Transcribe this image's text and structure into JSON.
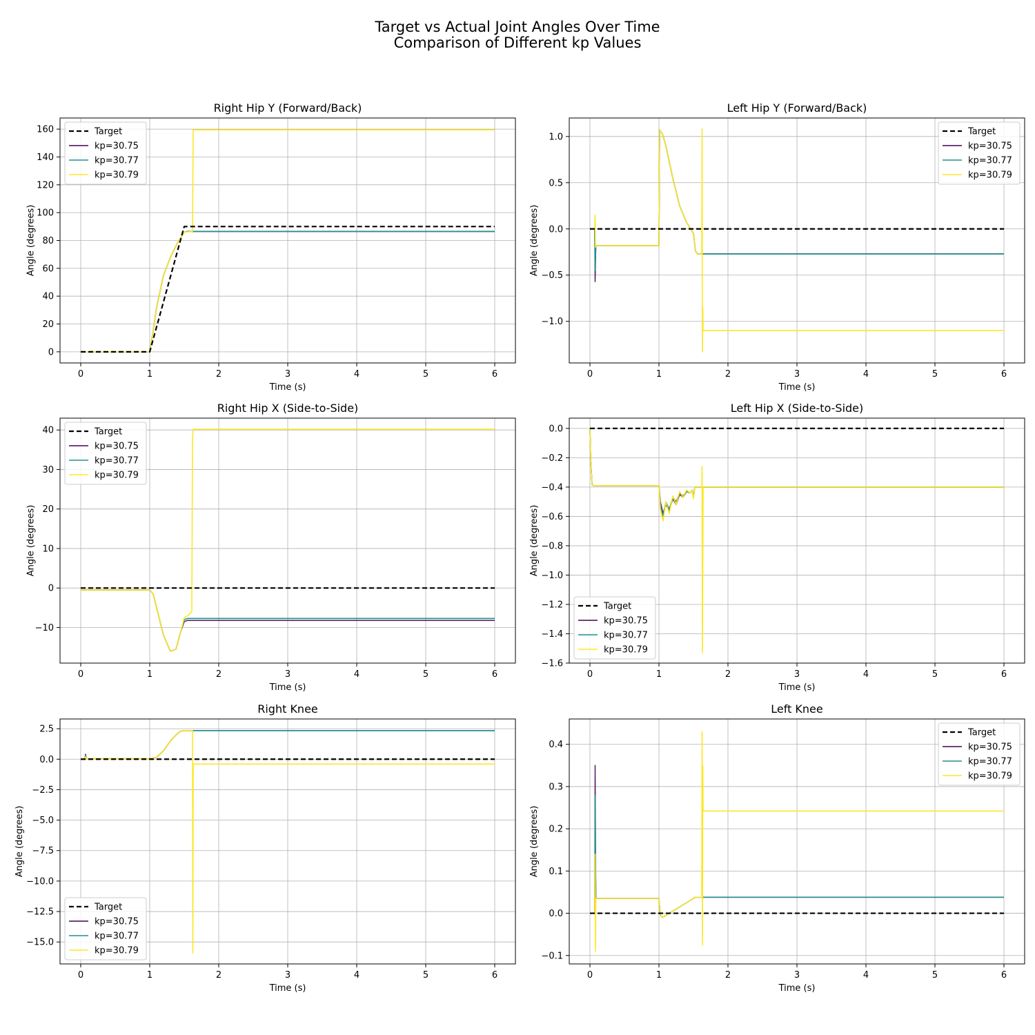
{
  "figure": {
    "title_line1": "Target vs Actual Joint Angles Over Time",
    "title_line2": "Comparison of Different kp Values"
  },
  "colors": {
    "target": "#000000",
    "kp30.75": "#440154",
    "kp30.77": "#21918c",
    "kp30.79": "#fde725",
    "grid": "#b0b0b0"
  },
  "legend_labels": [
    "Target",
    "kp=30.75",
    "kp=30.77",
    "kp=30.79"
  ],
  "chart_data": [
    {
      "type": "line",
      "title": "Right Hip Y (Forward/Back)",
      "xlabel": "Time (s)",
      "ylabel": "Angle (degrees)",
      "xlim": [
        -0.3,
        6.3
      ],
      "ylim": [
        -8,
        168
      ],
      "xticks": [
        0,
        1,
        2,
        3,
        4,
        5,
        6
      ],
      "yticks": [
        0,
        20,
        40,
        60,
        80,
        100,
        120,
        140,
        160
      ],
      "ytick_labels": [
        "0",
        "20",
        "40",
        "60",
        "80",
        "100",
        "120",
        "140",
        "160"
      ],
      "grid": true,
      "legend": "upper-left",
      "series": [
        {
          "name": "Target",
          "style": "dashed",
          "x": [
            0,
            1.0,
            1.5,
            6
          ],
          "y": [
            0,
            0,
            90,
            90
          ]
        },
        {
          "name": "kp=30.75",
          "x": [
            0,
            1.0,
            1.05,
            1.1,
            1.2,
            1.3,
            1.4,
            1.5,
            1.55,
            6
          ],
          "y": [
            0,
            0,
            15,
            32,
            55,
            68,
            78,
            86,
            86.5,
            86.5
          ]
        },
        {
          "name": "kp=30.77",
          "x": [
            0,
            1.0,
            1.05,
            1.1,
            1.2,
            1.3,
            1.4,
            1.5,
            1.55,
            6
          ],
          "y": [
            0,
            0,
            15,
            32,
            55,
            68,
            78,
            86,
            86.5,
            86.5
          ]
        },
        {
          "name": "kp=30.79",
          "x": [
            0,
            1.0,
            1.05,
            1.1,
            1.2,
            1.3,
            1.4,
            1.5,
            1.62,
            1.63,
            6
          ],
          "y": [
            0,
            0,
            15,
            32,
            55,
            68,
            78,
            86,
            86.5,
            159.5,
            159.5
          ]
        }
      ]
    },
    {
      "type": "line",
      "title": "Left Hip Y (Forward/Back)",
      "xlabel": "Time (s)",
      "ylabel": "Angle (degrees)",
      "xlim": [
        -0.3,
        6.3
      ],
      "ylim": [
        -1.45,
        1.2
      ],
      "xticks": [
        0,
        1,
        2,
        3,
        4,
        5,
        6
      ],
      "yticks": [
        1.0,
        0.5,
        0.0,
        -0.5,
        -1.0
      ],
      "ytick_labels": [
        "1.0",
        "0.5",
        "0.0",
        "−0.5",
        "−1.0"
      ],
      "grid": true,
      "legend": "upper-right",
      "series": [
        {
          "name": "Target",
          "style": "dashed",
          "x": [
            0,
            6
          ],
          "y": [
            0,
            0
          ]
        },
        {
          "name": "kp=30.75",
          "x": [
            0,
            0.07,
            0.075,
            0.08,
            0.085,
            0.09,
            1.0,
            1.01,
            1.05,
            1.1,
            1.2,
            1.3,
            1.4,
            1.5,
            1.53,
            1.56,
            6
          ],
          "y": [
            0,
            0,
            -0.57,
            -0.35,
            -0.18,
            -0.18,
            -0.18,
            1.07,
            1.03,
            0.9,
            0.55,
            0.25,
            0.07,
            -0.05,
            -0.24,
            -0.27,
            -0.27
          ]
        },
        {
          "name": "kp=30.77",
          "x": [
            0,
            0.07,
            0.075,
            0.08,
            0.085,
            0.09,
            1.0,
            1.01,
            1.05,
            1.1,
            1.2,
            1.3,
            1.4,
            1.5,
            1.53,
            1.56,
            6
          ],
          "y": [
            0,
            0,
            -0.45,
            -0.3,
            -0.18,
            -0.18,
            -0.18,
            1.07,
            1.03,
            0.9,
            0.55,
            0.25,
            0.07,
            -0.05,
            -0.24,
            -0.27,
            -0.27
          ]
        },
        {
          "name": "kp=30.79",
          "x": [
            0,
            0.07,
            0.075,
            0.08,
            0.085,
            0.09,
            1.0,
            1.01,
            1.05,
            1.1,
            1.2,
            1.3,
            1.4,
            1.5,
            1.53,
            1.56,
            1.62,
            1.625,
            1.63,
            1.635,
            1.64,
            6
          ],
          "y": [
            0,
            0,
            0.15,
            -0.2,
            -0.18,
            -0.18,
            -0.18,
            1.07,
            1.03,
            0.9,
            0.55,
            0.25,
            0.07,
            -0.05,
            -0.24,
            -0.27,
            -0.27,
            1.08,
            -1.33,
            -0.85,
            -1.1,
            -1.1
          ]
        }
      ]
    },
    {
      "type": "line",
      "title": "Right Hip X (Side-to-Side)",
      "xlabel": "Time (s)",
      "ylabel": "Angle (degrees)",
      "xlim": [
        -0.3,
        6.3
      ],
      "ylim": [
        -19,
        43
      ],
      "xticks": [
        0,
        1,
        2,
        3,
        4,
        5,
        6
      ],
      "yticks": [
        40,
        30,
        20,
        10,
        0,
        -10
      ],
      "ytick_labels": [
        "40",
        "30",
        "20",
        "10",
        "0",
        "−10"
      ],
      "grid": true,
      "legend": "upper-left",
      "series": [
        {
          "name": "Target",
          "style": "dashed",
          "x": [
            0,
            6
          ],
          "y": [
            0,
            0
          ]
        },
        {
          "name": "kp=30.75",
          "x": [
            0,
            1.0,
            1.05,
            1.1,
            1.2,
            1.3,
            1.38,
            1.45,
            1.5,
            1.55,
            6
          ],
          "y": [
            -0.5,
            -0.5,
            -1.5,
            -5,
            -12,
            -16,
            -15.5,
            -11,
            -8.5,
            -8.2,
            -8.2
          ]
        },
        {
          "name": "kp=30.77",
          "x": [
            0,
            1.0,
            1.05,
            1.1,
            1.2,
            1.3,
            1.38,
            1.45,
            1.5,
            1.55,
            6
          ],
          "y": [
            -0.5,
            -0.5,
            -1.5,
            -5,
            -12,
            -16,
            -15.5,
            -11,
            -8,
            -7.7,
            -7.7
          ]
        },
        {
          "name": "kp=30.79",
          "x": [
            0,
            1.0,
            1.05,
            1.1,
            1.2,
            1.3,
            1.38,
            1.45,
            1.5,
            1.55,
            1.61,
            1.62,
            1.63,
            6
          ],
          "y": [
            -0.5,
            -0.5,
            -1.5,
            -5,
            -12,
            -16,
            -15.5,
            -11,
            -7.5,
            -7,
            -6,
            38,
            40.2,
            40.2
          ]
        }
      ]
    },
    {
      "type": "line",
      "title": "Left Hip X (Side-to-Side)",
      "xlabel": "Time (s)",
      "ylabel": "Angle (degrees)",
      "xlim": [
        -0.3,
        6.3
      ],
      "ylim": [
        -1.6,
        0.07
      ],
      "xticks": [
        0,
        1,
        2,
        3,
        4,
        5,
        6
      ],
      "yticks": [
        0.0,
        -0.2,
        -0.4,
        -0.6,
        -0.8,
        -1.0,
        -1.2,
        -1.4,
        -1.6
      ],
      "ytick_labels": [
        "0.0",
        "−0.2",
        "−0.4",
        "−0.6",
        "−0.8",
        "−1.0",
        "−1.2",
        "−1.4",
        "−1.6"
      ],
      "grid": true,
      "legend": "lower-left",
      "series": [
        {
          "name": "Target",
          "style": "dashed",
          "x": [
            0,
            6
          ],
          "y": [
            0,
            0
          ]
        },
        {
          "name": "kp=30.75",
          "x": [
            0,
            0.01,
            0.03,
            0.05,
            1.0,
            1.02,
            1.06,
            1.1,
            1.15,
            1.2,
            1.25,
            1.3,
            1.35,
            1.4,
            1.45,
            1.48,
            1.5,
            1.52,
            6
          ],
          "y": [
            0,
            -0.2,
            -0.38,
            -0.39,
            -0.39,
            -0.5,
            -0.58,
            -0.52,
            -0.56,
            -0.48,
            -0.52,
            -0.45,
            -0.47,
            -0.43,
            -0.44,
            -0.42,
            -0.47,
            -0.4,
            -0.4
          ]
        },
        {
          "name": "kp=30.77",
          "x": [
            0,
            0.01,
            0.03,
            0.05,
            1.0,
            1.02,
            1.06,
            1.1,
            1.15,
            1.2,
            1.25,
            1.3,
            1.35,
            1.4,
            1.45,
            1.48,
            1.5,
            1.52,
            6
          ],
          "y": [
            0,
            -0.2,
            -0.38,
            -0.39,
            -0.39,
            -0.52,
            -0.6,
            -0.5,
            -0.55,
            -0.47,
            -0.5,
            -0.44,
            -0.46,
            -0.43,
            -0.44,
            -0.42,
            -0.47,
            -0.4,
            -0.4
          ]
        },
        {
          "name": "kp=30.79",
          "x": [
            0,
            0.01,
            0.03,
            0.05,
            1.0,
            1.02,
            1.06,
            1.1,
            1.15,
            1.2,
            1.25,
            1.3,
            1.35,
            1.4,
            1.45,
            1.48,
            1.5,
            1.52,
            1.62,
            1.625,
            1.63,
            1.64,
            6
          ],
          "y": [
            0,
            -0.2,
            -0.38,
            -0.39,
            -0.39,
            -0.55,
            -0.63,
            -0.5,
            -0.58,
            -0.46,
            -0.52,
            -0.43,
            -0.47,
            -0.42,
            -0.44,
            -0.42,
            -0.48,
            -0.4,
            -0.4,
            -0.26,
            -1.53,
            -0.4,
            -0.4
          ]
        }
      ]
    },
    {
      "type": "line",
      "title": "Right Knee",
      "xlabel": "Time (s)",
      "ylabel": "Angle (degrees)",
      "xlim": [
        -0.3,
        6.3
      ],
      "ylim": [
        -16.8,
        3.3
      ],
      "xticks": [
        0,
        1,
        2,
        3,
        4,
        5,
        6
      ],
      "yticks": [
        2.5,
        0.0,
        -2.5,
        -5.0,
        -7.5,
        -10.0,
        -12.5,
        -15.0
      ],
      "ytick_labels": [
        "2.5",
        "0.0",
        "−2.5",
        "−5.0",
        "−7.5",
        "−10.0",
        "−12.5",
        "−15.0"
      ],
      "grid": true,
      "legend": "lower-left",
      "series": [
        {
          "name": "Target",
          "style": "dashed",
          "x": [
            0,
            6
          ],
          "y": [
            0,
            0
          ]
        },
        {
          "name": "kp=30.75",
          "x": [
            0,
            0.06,
            0.07,
            0.08,
            0.1,
            1.0,
            1.1,
            1.2,
            1.3,
            1.4,
            1.45,
            1.5,
            1.55,
            6
          ],
          "y": [
            0,
            0,
            0.4,
            0,
            0.05,
            0.05,
            0.15,
            0.7,
            1.5,
            2.1,
            2.3,
            2.35,
            2.35,
            2.35
          ]
        },
        {
          "name": "kp=30.77",
          "x": [
            0,
            0.06,
            0.07,
            0.08,
            0.1,
            1.0,
            1.1,
            1.2,
            1.3,
            1.4,
            1.45,
            1.5,
            1.55,
            6
          ],
          "y": [
            0,
            0,
            0.3,
            0,
            0.05,
            0.05,
            0.15,
            0.7,
            1.5,
            2.1,
            2.3,
            2.35,
            2.35,
            2.35
          ]
        },
        {
          "name": "kp=30.79",
          "x": [
            0,
            0.06,
            0.07,
            0.08,
            0.1,
            1.0,
            1.1,
            1.2,
            1.3,
            1.4,
            1.45,
            1.5,
            1.55,
            1.62,
            1.625,
            1.63,
            6
          ],
          "y": [
            0,
            0,
            0.2,
            0,
            0.05,
            0.05,
            0.15,
            0.7,
            1.5,
            2.1,
            2.3,
            2.35,
            2.35,
            2.35,
            -15.9,
            -0.4,
            -0.4
          ]
        }
      ]
    },
    {
      "type": "line",
      "title": "Left Knee",
      "xlabel": "Time (s)",
      "ylabel": "Angle (degrees)",
      "xlim": [
        -0.3,
        6.3
      ],
      "ylim": [
        -0.12,
        0.46
      ],
      "xticks": [
        0,
        1,
        2,
        3,
        4,
        5,
        6
      ],
      "yticks": [
        0.4,
        0.3,
        0.2,
        0.1,
        0.0,
        -0.1
      ],
      "ytick_labels": [
        "0.4",
        "0.3",
        "0.2",
        "0.1",
        "0.0",
        "−0.1"
      ],
      "grid": true,
      "legend": "upper-right",
      "series": [
        {
          "name": "Target",
          "style": "dashed",
          "x": [
            0,
            6
          ],
          "y": [
            0,
            0
          ]
        },
        {
          "name": "kp=30.75",
          "x": [
            0,
            0.07,
            0.075,
            0.08,
            0.085,
            0.09,
            1.0,
            1.02,
            1.05,
            1.1,
            1.2,
            1.3,
            1.4,
            1.5,
            1.52,
            6
          ],
          "y": [
            0,
            0,
            0.35,
            0.15,
            0.035,
            0.035,
            0.035,
            -0.005,
            -0.01,
            -0.005,
            0.005,
            0.015,
            0.025,
            0.035,
            0.038,
            0.038
          ]
        },
        {
          "name": "kp=30.77",
          "x": [
            0,
            0.07,
            0.075,
            0.08,
            0.085,
            0.09,
            1.0,
            1.02,
            1.05,
            1.1,
            1.2,
            1.3,
            1.4,
            1.5,
            1.52,
            6
          ],
          "y": [
            0,
            0,
            0.28,
            0.14,
            0.035,
            0.035,
            0.035,
            -0.005,
            -0.01,
            -0.005,
            0.005,
            0.015,
            0.025,
            0.035,
            0.038,
            0.038
          ]
        },
        {
          "name": "kp=30.79",
          "x": [
            0,
            0.07,
            0.075,
            0.08,
            0.085,
            0.09,
            1.0,
            1.02,
            1.05,
            1.1,
            1.2,
            1.3,
            1.4,
            1.5,
            1.52,
            1.62,
            1.625,
            1.63,
            1.635,
            1.64,
            6
          ],
          "y": [
            0,
            0,
            0.14,
            -0.09,
            0.035,
            0.035,
            0.035,
            -0.005,
            -0.01,
            -0.005,
            0.005,
            0.015,
            0.025,
            0.035,
            0.038,
            0.038,
            0.43,
            -0.075,
            0.35,
            0.242,
            0.242
          ]
        }
      ]
    }
  ]
}
